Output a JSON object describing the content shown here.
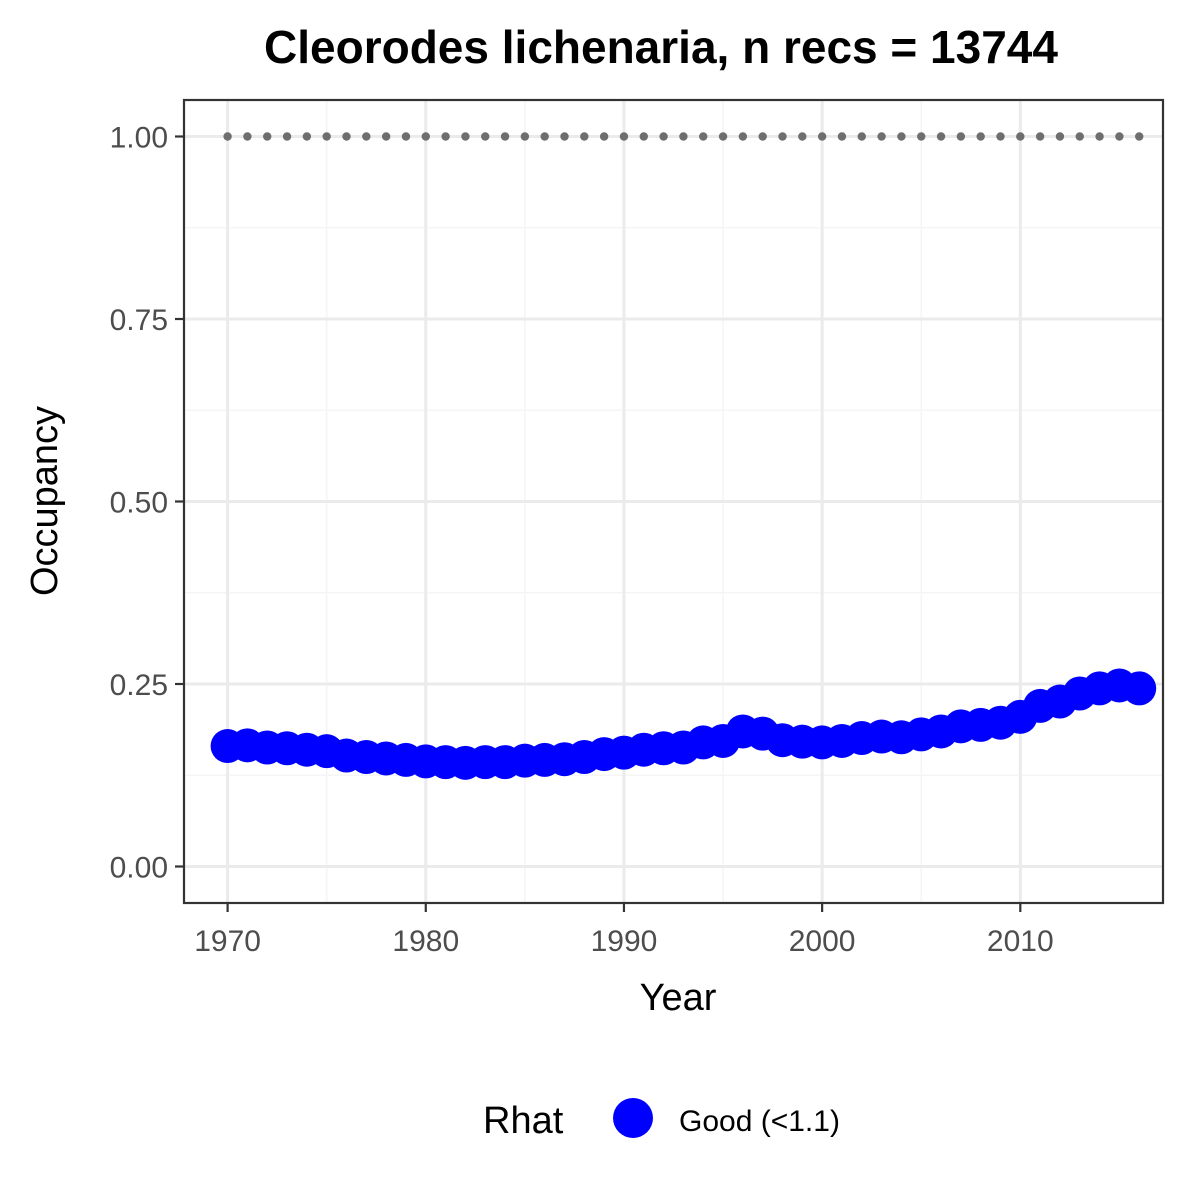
{
  "chart_data": {
    "type": "scatter",
    "title": "Cleorodes lichenaria, n recs = 13744",
    "xlabel": "Year",
    "ylabel": "Occupancy",
    "xlim": [
      1967.8,
      2017.2
    ],
    "ylim": [
      -0.05,
      1.05
    ],
    "x_ticks": [
      1970,
      1980,
      1990,
      2000,
      2010
    ],
    "x_tick_labels": [
      "1970",
      "1980",
      "1990",
      "2000",
      "2010"
    ],
    "y_ticks": [
      0.0,
      0.25,
      0.5,
      0.75,
      1.0
    ],
    "y_tick_labels": [
      "0.00",
      "0.25",
      "0.50",
      "0.75",
      "1.00"
    ],
    "grid": true,
    "legend": {
      "title": "Rhat",
      "placement": "bottom",
      "entries": [
        {
          "label": "Good (<1.1)",
          "color": "#0000ff"
        }
      ]
    },
    "series": [
      {
        "name": "Good (<1.1)",
        "color": "#0000ff",
        "x": [
          1970,
          1971,
          1972,
          1973,
          1974,
          1975,
          1976,
          1977,
          1978,
          1979,
          1980,
          1981,
          1982,
          1983,
          1984,
          1985,
          1986,
          1987,
          1988,
          1989,
          1990,
          1991,
          1992,
          1993,
          1994,
          1995,
          1996,
          1997,
          1998,
          1999,
          2000,
          2001,
          2002,
          2003,
          2004,
          2005,
          2006,
          2007,
          2008,
          2009,
          2010,
          2011,
          2012,
          2013,
          2014,
          2015,
          2016
        ],
        "y": [
          0.165,
          0.166,
          0.163,
          0.162,
          0.16,
          0.158,
          0.152,
          0.15,
          0.148,
          0.146,
          0.144,
          0.143,
          0.142,
          0.143,
          0.143,
          0.145,
          0.146,
          0.147,
          0.15,
          0.154,
          0.156,
          0.16,
          0.162,
          0.163,
          0.17,
          0.172,
          0.185,
          0.182,
          0.173,
          0.171,
          0.17,
          0.172,
          0.176,
          0.178,
          0.177,
          0.181,
          0.185,
          0.192,
          0.194,
          0.197,
          0.205,
          0.22,
          0.226,
          0.237,
          0.244,
          0.248,
          0.244
        ]
      },
      {
        "name": "",
        "style": "dotted",
        "color": "#6e6e6e",
        "x": [
          1970,
          1971,
          1972,
          1973,
          1974,
          1975,
          1976,
          1977,
          1978,
          1979,
          1980,
          1981,
          1982,
          1983,
          1984,
          1985,
          1986,
          1987,
          1988,
          1989,
          1990,
          1991,
          1992,
          1993,
          1994,
          1995,
          1996,
          1997,
          1998,
          1999,
          2000,
          2001,
          2002,
          2003,
          2004,
          2005,
          2006,
          2007,
          2008,
          2009,
          2010,
          2011,
          2012,
          2013,
          2014,
          2015,
          2016
        ],
        "y": [
          1,
          1,
          1,
          1,
          1,
          1,
          1,
          1,
          1,
          1,
          1,
          1,
          1,
          1,
          1,
          1,
          1,
          1,
          1,
          1,
          1,
          1,
          1,
          1,
          1,
          1,
          1,
          1,
          1,
          1,
          1,
          1,
          1,
          1,
          1,
          1,
          1,
          1,
          1,
          1,
          1,
          1,
          1,
          1,
          1,
          1,
          1
        ]
      }
    ]
  },
  "colors": {
    "panel_border": "#333333",
    "grid_major": "#ebebeb",
    "grid_minor": "#f5f5f5",
    "points": "#0000ff",
    "dotted_line": "#6e6e6e"
  }
}
